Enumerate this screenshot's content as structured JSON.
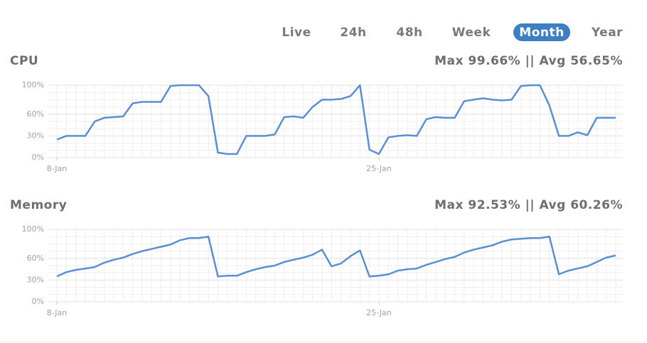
{
  "tabs": [
    "Live",
    "24h",
    "48h",
    "Week",
    "Month",
    "Year"
  ],
  "active_tab": "Month",
  "chart_data": [
    {
      "type": "line",
      "title": "CPU",
      "subtitle": "Max 99.66% || Avg 56.65%",
      "categories": [
        "8-Jan",
        null,
        null,
        null,
        null,
        null,
        null,
        null,
        null,
        null,
        null,
        null,
        null,
        null,
        null,
        null,
        null,
        null,
        null,
        null,
        null,
        null,
        null,
        null,
        null,
        null,
        null,
        null,
        null,
        null,
        null,
        null,
        null,
        null,
        "25-Jan",
        null,
        null,
        null,
        null,
        null,
        null,
        null,
        null,
        null,
        null,
        null,
        null,
        null,
        null,
        null,
        null,
        null,
        null,
        null,
        null,
        null,
        null,
        null,
        null,
        null
      ],
      "values": [
        25,
        30,
        30,
        30,
        50,
        55,
        56,
        57,
        75,
        77,
        77,
        77,
        99,
        100,
        100,
        100,
        85,
        7,
        5,
        5,
        30,
        30,
        30,
        32,
        56,
        57,
        55,
        70,
        80,
        80,
        81,
        85,
        100,
        11,
        5,
        28,
        30,
        31,
        30,
        53,
        56,
        55,
        55,
        78,
        80,
        82,
        80,
        79,
        80,
        99,
        100,
        100,
        72,
        30,
        30,
        35,
        31,
        55,
        55,
        55
      ],
      "color": "#5b8fd4",
      "ylim": [
        0,
        100
      ],
      "yticks": [
        {
          "value": 0,
          "label": "0%"
        },
        {
          "value": 30,
          "label": "30%"
        },
        {
          "value": 60,
          "label": "60%"
        },
        {
          "value": 100,
          "label": "100%"
        }
      ],
      "grid": true
    },
    {
      "type": "line",
      "title": "Memory",
      "subtitle": "Max 92.53% || Avg 60.26%",
      "categories": [
        "8-Jan",
        null,
        null,
        null,
        null,
        null,
        null,
        null,
        null,
        null,
        null,
        null,
        null,
        null,
        null,
        null,
        null,
        null,
        null,
        null,
        null,
        null,
        null,
        null,
        null,
        null,
        null,
        null,
        null,
        null,
        null,
        null,
        null,
        null,
        "25-Jan",
        null,
        null,
        null,
        null,
        null,
        null,
        null,
        null,
        null,
        null,
        null,
        null,
        null,
        null,
        null,
        null,
        null,
        null,
        null,
        null,
        null,
        null,
        null,
        null,
        null
      ],
      "values": [
        35,
        41,
        44,
        46,
        48,
        54,
        58,
        61,
        66,
        70,
        73,
        76,
        79,
        85,
        88,
        88,
        90,
        35,
        36,
        36,
        41,
        45,
        48,
        50,
        55,
        58,
        61,
        65,
        72,
        49,
        53,
        63,
        71,
        35,
        36,
        38,
        43,
        45,
        46,
        51,
        55,
        59,
        62,
        68,
        72,
        75,
        78,
        83,
        86,
        87,
        88,
        88,
        90,
        38,
        43,
        46,
        49,
        55,
        61,
        64
      ],
      "color": "#5b8fd4",
      "ylim": [
        0,
        100
      ],
      "yticks": [
        {
          "value": 0,
          "label": "0%"
        },
        {
          "value": 30,
          "label": "30%"
        },
        {
          "value": 60,
          "label": "60%"
        },
        {
          "value": 100,
          "label": "100%"
        }
      ],
      "grid": true
    }
  ]
}
